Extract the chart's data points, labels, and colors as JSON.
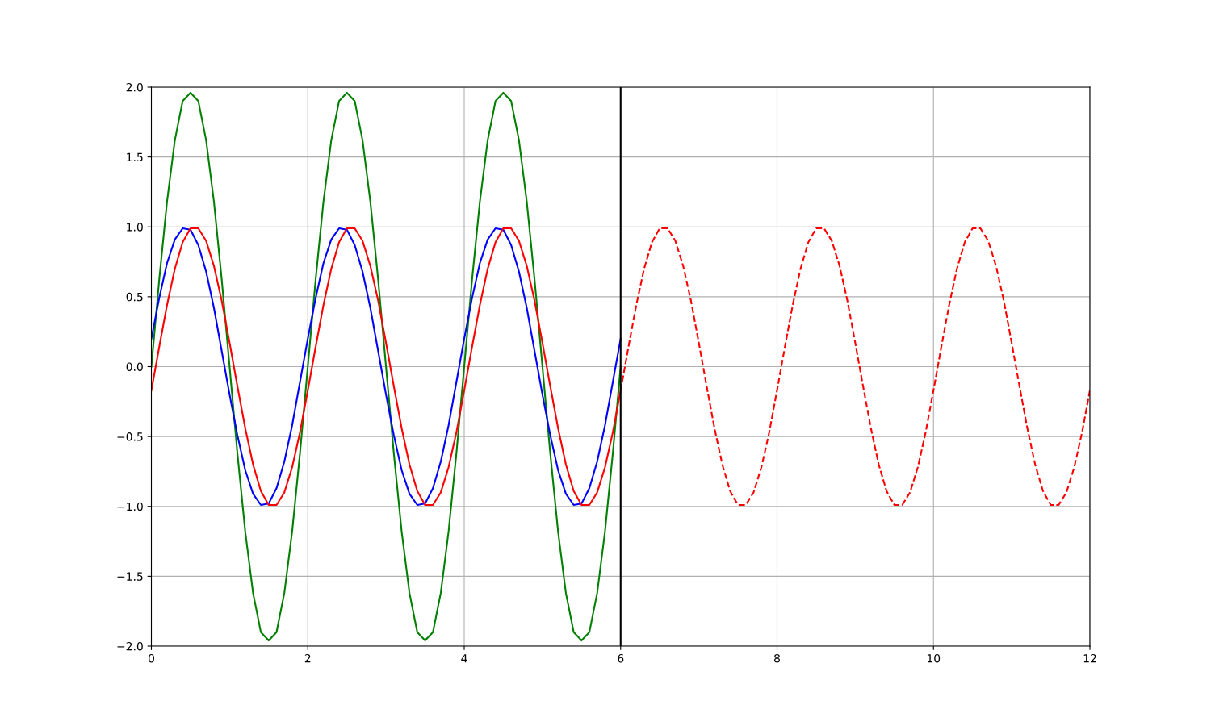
{
  "chart_data": {
    "type": "line",
    "x": [
      0,
      0.1,
      0.2,
      0.3,
      0.4,
      0.5,
      0.6,
      0.7,
      0.8,
      0.9,
      1.0,
      1.1,
      1.2,
      1.3,
      1.4,
      1.5,
      1.6,
      1.7,
      1.8,
      1.9,
      2.0,
      2.1,
      2.2,
      2.3,
      2.4,
      2.5,
      2.6,
      2.7,
      2.8,
      2.9,
      3.0,
      3.1,
      3.2,
      3.3,
      3.4,
      3.5,
      3.6,
      3.7,
      3.8,
      3.9,
      4.0,
      4.1,
      4.2,
      4.3,
      4.4,
      4.5,
      4.6,
      4.7,
      4.8,
      4.9,
      5.0,
      5.1,
      5.2,
      5.3,
      5.4,
      5.5,
      5.6,
      5.7,
      5.8,
      5.9,
      6.0
    ],
    "series": [
      {
        "color": "#008000",
        "values": [
          0,
          0.62,
          1.18,
          1.62,
          1.9,
          1.96,
          1.9,
          1.62,
          1.18,
          0.62,
          0,
          -0.62,
          -1.18,
          -1.62,
          -1.9,
          -1.96,
          -1.9,
          -1.62,
          -1.18,
          -0.62,
          0,
          0.62,
          1.18,
          1.62,
          1.9,
          1.96,
          1.9,
          1.62,
          1.18,
          0.62,
          0,
          -0.62,
          -1.18,
          -1.62,
          -1.9,
          -1.96,
          -1.9,
          -1.62,
          -1.18,
          -0.62,
          0,
          0.62,
          1.18,
          1.62,
          1.9,
          1.96,
          1.9,
          1.62,
          1.18,
          0.62,
          0,
          -0.62,
          -1.18,
          -1.62,
          -1.9,
          -1.96,
          -1.9,
          -1.62,
          -1.18,
          -0.62,
          0
        ]
      },
      {
        "color": "#0000ff",
        "values": [
          0.2,
          0.49,
          0.74,
          0.91,
          0.99,
          0.98,
          0.87,
          0.68,
          0.42,
          0.11,
          -0.2,
          -0.49,
          -0.74,
          -0.91,
          -0.99,
          -0.98,
          -0.87,
          -0.68,
          -0.42,
          -0.11,
          0.2,
          0.49,
          0.74,
          0.91,
          0.99,
          0.98,
          0.87,
          0.68,
          0.42,
          0.11,
          -0.2,
          -0.49,
          -0.74,
          -0.91,
          -0.99,
          -0.98,
          -0.87,
          -0.68,
          -0.42,
          -0.11,
          0.2,
          0.49,
          0.74,
          0.91,
          0.99,
          0.98,
          0.87,
          0.68,
          0.42,
          0.11,
          -0.2,
          -0.49,
          -0.74,
          -0.91,
          -0.99,
          -0.98,
          -0.87,
          -0.68,
          -0.42,
          -0.11,
          0.2
        ]
      },
      {
        "color": "#ff0000",
        "values": [
          -0.17,
          0.14,
          0.44,
          0.7,
          0.89,
          0.99,
          0.99,
          0.9,
          0.72,
          0.47,
          0.17,
          -0.14,
          -0.44,
          -0.7,
          -0.89,
          -0.99,
          -0.99,
          -0.9,
          -0.72,
          -0.47,
          -0.17,
          0.14,
          0.44,
          0.7,
          0.89,
          0.99,
          0.99,
          0.9,
          0.72,
          0.47,
          0.17,
          -0.14,
          -0.44,
          -0.7,
          -0.89,
          -0.99,
          -0.99,
          -0.9,
          -0.72,
          -0.47,
          -0.17,
          0.14,
          0.44,
          0.7,
          0.89,
          0.99,
          0.99,
          0.9,
          0.72,
          0.47,
          0.17,
          -0.14,
          -0.44,
          -0.7,
          -0.89,
          -0.99,
          -0.99,
          -0.9,
          -0.72,
          -0.47,
          -0.17
        ]
      },
      {
        "color": "#ff0000",
        "line_style": "dashed",
        "x": [
          6.0,
          6.1,
          6.2,
          6.3,
          6.4,
          6.5,
          6.6,
          6.7,
          6.8,
          6.9,
          7.0,
          7.1,
          7.2,
          7.3,
          7.4,
          7.5,
          7.6,
          7.7,
          7.8,
          7.9,
          8.0,
          8.1,
          8.2,
          8.3,
          8.4,
          8.5,
          8.6,
          8.7,
          8.8,
          8.9,
          9.0,
          9.1,
          9.2,
          9.3,
          9.4,
          9.5,
          9.6,
          9.7,
          9.8,
          9.9,
          10.0,
          10.1,
          10.2,
          10.3,
          10.4,
          10.5,
          10.6,
          10.7,
          10.8,
          10.9,
          11.0,
          11.1,
          11.2,
          11.3,
          11.4,
          11.5,
          11.6,
          11.7,
          11.8,
          11.9,
          12.0
        ],
        "values": [
          -0.17,
          0.14,
          0.44,
          0.7,
          0.89,
          0.99,
          0.99,
          0.9,
          0.72,
          0.47,
          0.17,
          -0.14,
          -0.44,
          -0.7,
          -0.89,
          -0.99,
          -0.99,
          -0.9,
          -0.72,
          -0.47,
          -0.17,
          0.14,
          0.44,
          0.7,
          0.89,
          0.99,
          0.99,
          0.9,
          0.72,
          0.47,
          0.17,
          -0.14,
          -0.44,
          -0.7,
          -0.89,
          -0.99,
          -0.99,
          -0.9,
          -0.72,
          -0.47,
          -0.17,
          0.14,
          0.44,
          0.7,
          0.89,
          0.99,
          0.99,
          0.9,
          0.72,
          0.47,
          0.17,
          -0.14,
          -0.44,
          -0.7,
          -0.89,
          -0.99,
          -0.99,
          -0.9,
          -0.72,
          -0.47,
          -0.17
        ]
      }
    ],
    "ref_lines": [
      {
        "axis": "x",
        "value": 6,
        "color": "#000000"
      }
    ],
    "xlim": [
      0,
      12
    ],
    "xticks": [
      0,
      2,
      4,
      6,
      8,
      10,
      12
    ],
    "ylim": [
      -2,
      2
    ],
    "yticks": [
      {
        "value": -2,
        "label": "−2.0"
      },
      {
        "value": -1.5,
        "label": "−1.5"
      },
      {
        "value": -1,
        "label": "−1.0"
      },
      {
        "value": -0.5,
        "label": "−0.5"
      },
      {
        "value": 0,
        "label": "0.0"
      },
      {
        "value": 0.5,
        "label": "0.5"
      },
      {
        "value": 1,
        "label": "1.0"
      },
      {
        "value": 1.5,
        "label": "1.5"
      },
      {
        "value": 2,
        "label": "2.0"
      }
    ],
    "grid": true
  }
}
